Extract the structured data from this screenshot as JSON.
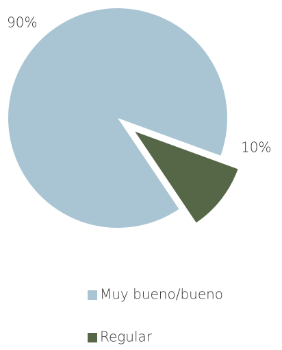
{
  "chart_data": {
    "type": "pie",
    "categories": [
      "Muy bueno/bueno",
      "Regular"
    ],
    "values": [
      90,
      10
    ],
    "value_labels": [
      "90%",
      "10%"
    ],
    "colors": [
      "#a9c5d3",
      "#566747"
    ],
    "legend": "bottom"
  }
}
